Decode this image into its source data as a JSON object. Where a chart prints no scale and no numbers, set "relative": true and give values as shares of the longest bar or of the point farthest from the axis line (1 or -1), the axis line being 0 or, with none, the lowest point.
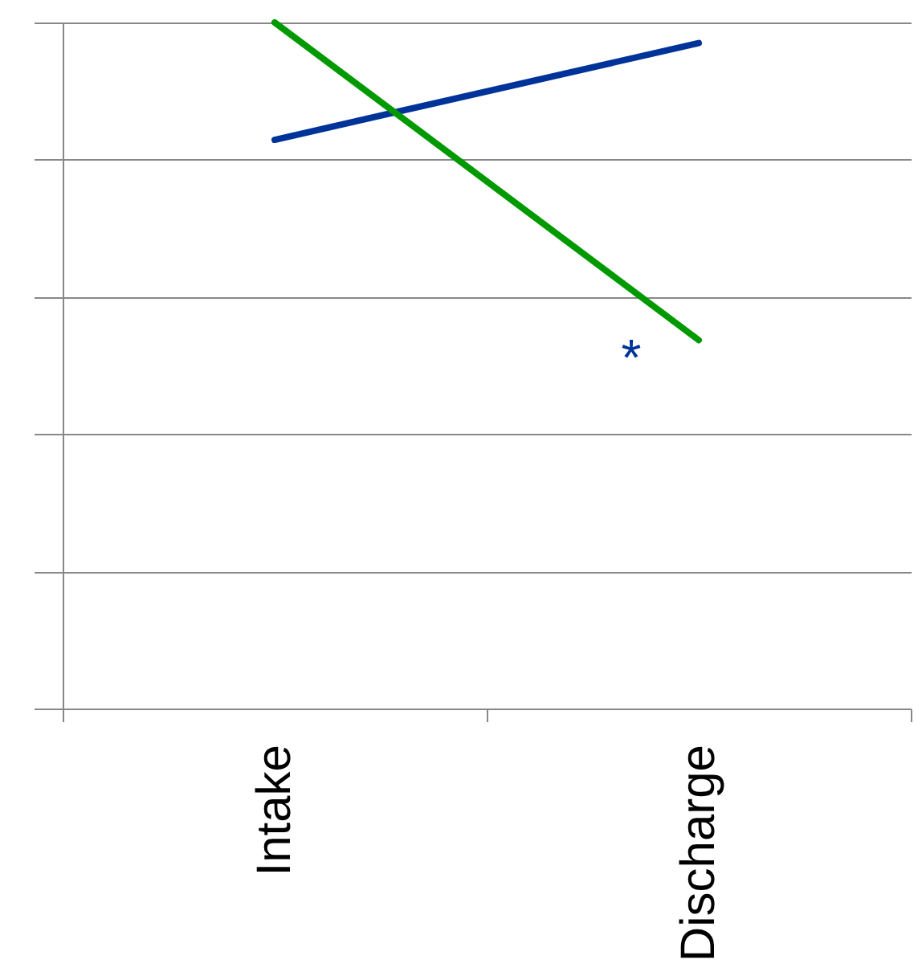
{
  "chart_data": {
    "type": "line",
    "relative": true,
    "categories": [
      "Intake",
      "Discharge"
    ],
    "series": [
      {
        "color": "#003399",
        "values": [
          0.829,
          0.97
        ]
      },
      {
        "color": "#009900",
        "values": [
          1,
          0.537
        ]
      }
    ],
    "annotations": [
      {
        "text": "*",
        "x": "Discharge",
        "y": 0.537
      }
    ],
    "grid": "y",
    "marker": "none",
    "line_style": "solid"
  }
}
